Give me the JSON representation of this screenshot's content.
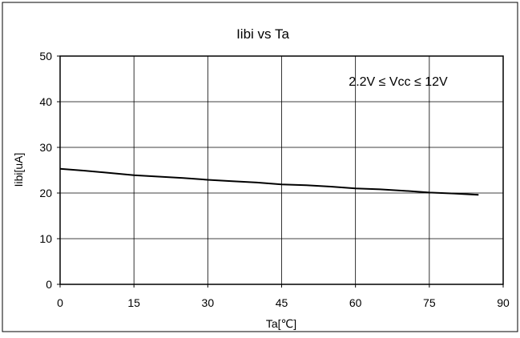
{
  "chart_data": {
    "type": "line",
    "title": "Iibi vs Ta",
    "xlabel": "Ta[℃]",
    "ylabel": "Iibi[uA]",
    "xlim": [
      0,
      90
    ],
    "ylim": [
      0,
      50
    ],
    "xticks": [
      0,
      15,
      30,
      45,
      60,
      75,
      90
    ],
    "yticks": [
      0,
      10,
      20,
      30,
      40,
      50
    ],
    "grid": true,
    "annotation": "2.2V ≤ Vcc ≤ 12V",
    "series": [
      {
        "x": [
          0,
          5,
          10,
          15,
          20,
          25,
          30,
          35,
          40,
          45,
          50,
          55,
          60,
          65,
          70,
          75,
          80,
          85
        ],
        "y": [
          25.3,
          24.9,
          24.4,
          23.9,
          23.6,
          23.3,
          22.9,
          22.6,
          22.3,
          21.9,
          21.7,
          21.4,
          21.0,
          20.8,
          20.5,
          20.1,
          19.9,
          19.6
        ]
      }
    ],
    "colors": {
      "line": "#000000",
      "grid": "#000000",
      "background": "#ffffff"
    }
  }
}
